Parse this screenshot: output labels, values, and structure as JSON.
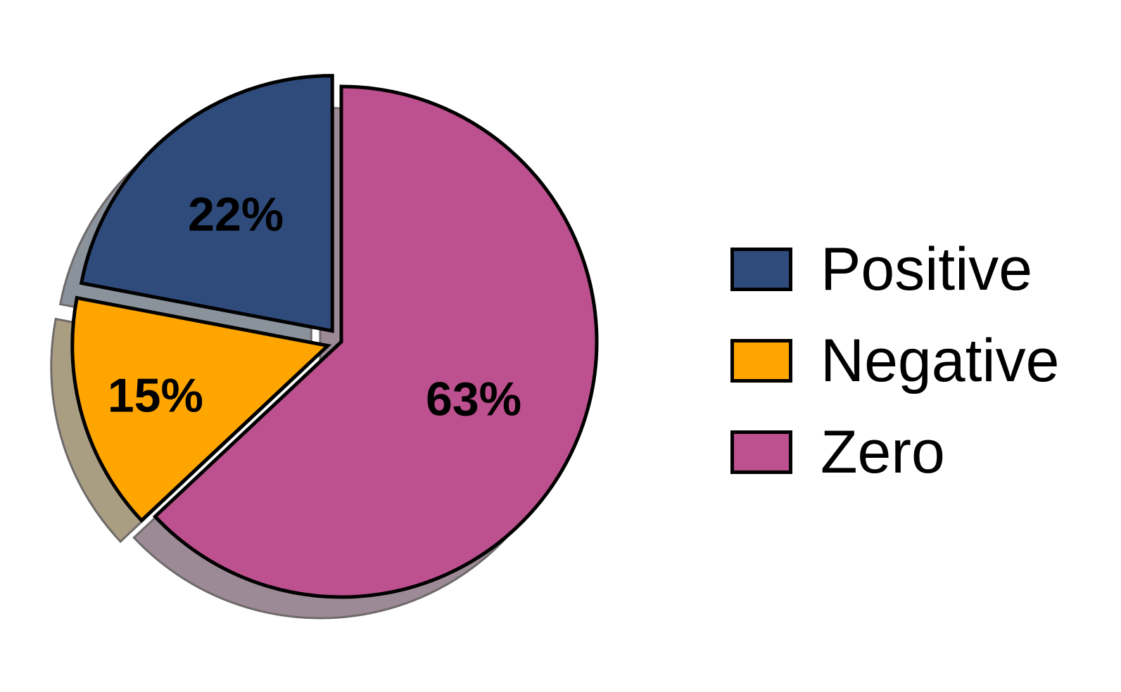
{
  "chart_data": {
    "type": "pie",
    "title": "",
    "slices": [
      {
        "name": "Positive",
        "value": 22,
        "label": "22%",
        "color": "#2F4B7C",
        "shadow": "#8A929C",
        "exploded": true
      },
      {
        "name": "Negative",
        "value": 15,
        "label": "15%",
        "color": "#FFA500",
        "shadow": "#AA9E82",
        "exploded": true
      },
      {
        "name": "Zero",
        "value": 63,
        "label": "63%",
        "color": "#BD508E",
        "shadow": "#9D8A97",
        "exploded": false
      }
    ],
    "legend_placement": "right"
  }
}
